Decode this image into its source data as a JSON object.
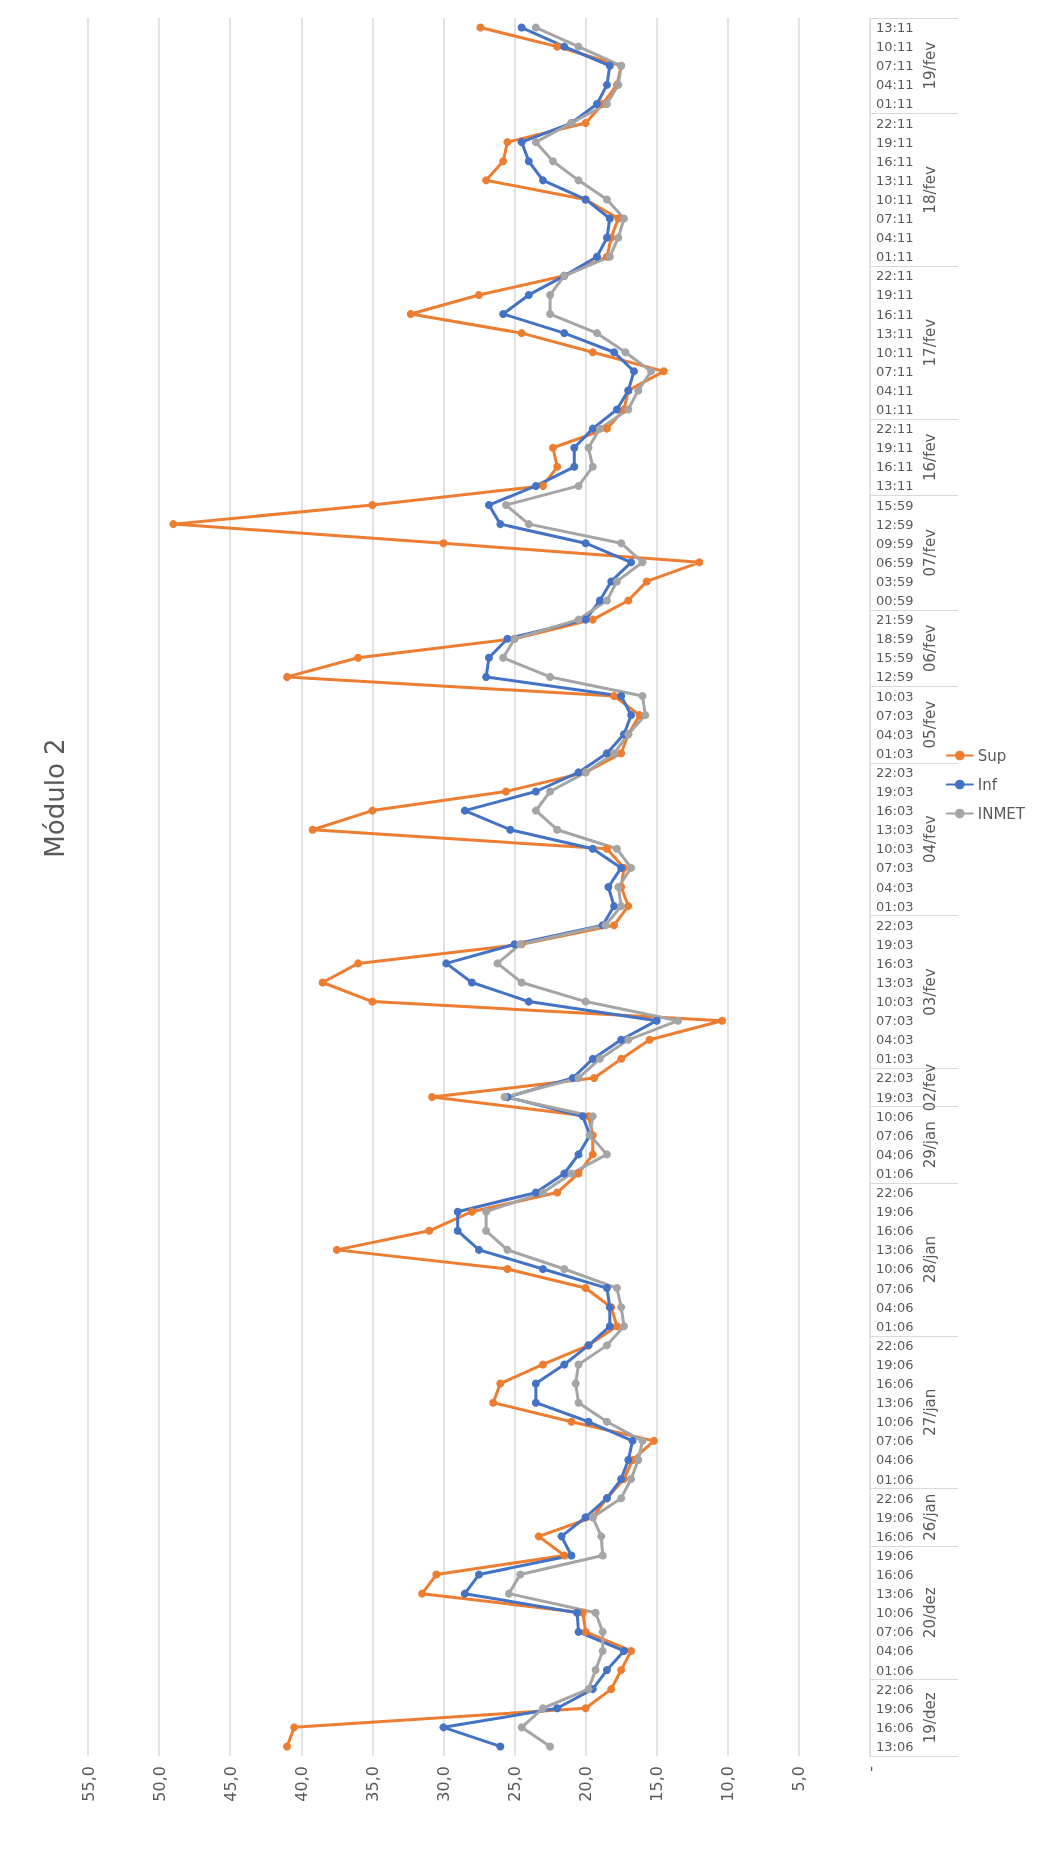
{
  "chart_data": {
    "type": "line",
    "title": "Módulo 2",
    "orientation": "horizontal",
    "categories": [
      "13:11",
      "10:11",
      "07:11",
      "04:11",
      "01:11",
      "22:11",
      "19:11",
      "16:11",
      "13:11",
      "10:11",
      "07:11",
      "04:11",
      "01:11",
      "22:11",
      "19:11",
      "16:11",
      "13:11",
      "10:11",
      "07:11",
      "04:11",
      "01:11",
      "22:11",
      "19:11",
      "16:11",
      "13:11",
      "15:59",
      "12:59",
      "09:59",
      "06:59",
      "03:59",
      "00:59",
      "21:59",
      "18:59",
      "15:59",
      "12:59",
      "10:03",
      "07:03",
      "04:03",
      "01:03",
      "22:03",
      "19:03",
      "16:03",
      "13:03",
      "10:03",
      "07:03",
      "04:03",
      "01:03",
      "22:03",
      "19:03",
      "16:03",
      "13:03",
      "10:03",
      "07:03",
      "04:03",
      "01:03",
      "22:03",
      "19:03",
      "10:06",
      "07:06",
      "04:06",
      "01:06",
      "22:06",
      "19:06",
      "16:06",
      "13:06",
      "10:06",
      "07:06",
      "04:06",
      "01:06",
      "22:06",
      "19:06",
      "16:06",
      "13:06",
      "10:06",
      "07:06",
      "04:06",
      "01:06",
      "22:06",
      "19:06",
      "16:06",
      "19:06",
      "16:06",
      "13:06",
      "10:06",
      "07:06",
      "04:06",
      "01:06",
      "22:06",
      "19:06",
      "16:06",
      "13:06"
    ],
    "annotations": [
      "19/fev",
      "18/fev",
      "17/fev",
      "16/fev",
      "07/fev",
      "06/fev",
      "05/fev",
      "04/fev",
      "03/fev",
      "02/fev",
      "29/jan",
      "28/jan",
      "27/jan",
      "26/jan",
      "20/dez",
      "19/dez"
    ],
    "series": [
      {
        "name": "Sup",
        "color": "#ed7d31",
        "values": [
          27.4,
          22,
          17.5,
          17.8,
          18.8,
          20,
          25.5,
          25.8,
          27,
          20,
          17.7,
          18.2,
          18.5,
          21.5,
          27.5,
          32.3,
          24.5,
          19.5,
          14.5,
          17,
          17.3,
          18.5,
          22.3,
          22,
          23,
          35,
          49,
          30,
          12,
          15.7,
          17,
          19.5,
          25,
          36,
          41,
          18,
          16.2,
          17,
          17.5,
          20,
          25.6,
          35,
          39.2,
          18.5,
          17.3,
          17.5,
          17,
          18,
          24.5,
          36,
          38.5,
          35,
          10.4,
          15.5,
          17.5,
          19.4,
          30.8,
          19.8,
          19.5,
          19.5,
          20.5,
          22,
          28,
          31,
          37.5,
          25.5,
          20,
          18.2,
          17.8,
          19.8,
          23,
          26,
          26.5,
          21,
          15.2,
          16.7,
          17.3,
          18.5,
          19.5,
          23.3,
          21.5,
          30.5,
          31.5,
          20.2,
          20,
          16.8,
          17.5,
          18.2,
          20,
          40.5,
          41
        ]
      },
      {
        "name": "Inf",
        "color": "#4472c4",
        "values": [
          24.5,
          21.5,
          18.3,
          18.5,
          19.2,
          21,
          24.5,
          24,
          23,
          20,
          18.3,
          18.5,
          19.2,
          21.5,
          24,
          25.8,
          21.5,
          18,
          16.6,
          17,
          17.8,
          19.5,
          20.8,
          20.8,
          23.5,
          26.8,
          26,
          20,
          16.8,
          18.2,
          19,
          20,
          25.5,
          26.8,
          27,
          17.5,
          16.8,
          17.3,
          18.5,
          20.5,
          23.5,
          28.5,
          25.3,
          19.5,
          17.5,
          18.4,
          18,
          18.8,
          25,
          29.8,
          28,
          24,
          15,
          17.5,
          19.5,
          20.9,
          25.5,
          20.2,
          19.7,
          20.5,
          21.5,
          23.5,
          29,
          29,
          27.5,
          23,
          18.5,
          18.3,
          18.3,
          19.8,
          21.5,
          23.5,
          23.5,
          19.8,
          16.7,
          17,
          17.5,
          18.5,
          20,
          21.7,
          21,
          27.5,
          28.5,
          20.6,
          20.5,
          17.3,
          18.5,
          19.5,
          22,
          30,
          26
        ]
      },
      {
        "name": "INMET",
        "color": "#a5a5a5",
        "values": [
          23.5,
          20.5,
          17.5,
          17.7,
          18.5,
          21,
          23.5,
          22.3,
          20.5,
          18.5,
          17.3,
          17.7,
          18.3,
          21.5,
          22.5,
          22.5,
          19.2,
          17.2,
          15.4,
          16.3,
          17,
          19,
          19.8,
          19.5,
          20.5,
          25.6,
          24,
          17.5,
          16,
          17.8,
          18.5,
          20.5,
          25,
          25.8,
          22.5,
          16,
          15.8,
          17,
          18,
          20,
          22.5,
          23.5,
          22,
          17.8,
          16.8,
          17.7,
          17.5,
          18.6,
          24.6,
          26.2,
          24.5,
          20,
          13.5,
          17,
          19,
          20.5,
          25.7,
          19.5,
          19.7,
          18.5,
          21,
          23,
          27,
          27,
          25.5,
          21.5,
          17.8,
          17.5,
          17.3,
          18.5,
          20.5,
          20.7,
          20.5,
          18.5,
          16,
          16.3,
          16.8,
          17.5,
          19.5,
          18.9,
          18.8,
          24.6,
          25.4,
          19.3,
          18.8,
          18.8,
          19.3,
          19.8,
          23,
          24.5,
          22.5
        ]
      }
    ],
    "xlim": [
      55,
      0
    ],
    "xticks": [
      {
        "value": 55,
        "label": "55,0"
      },
      {
        "value": 50,
        "label": "50,0"
      },
      {
        "value": 45,
        "label": "45,0"
      },
      {
        "value": 40,
        "label": "40,0"
      },
      {
        "value": 35,
        "label": "35,0"
      },
      {
        "value": 30,
        "label": "30,0"
      },
      {
        "value": 25,
        "label": "25,0"
      },
      {
        "value": 20,
        "label": "20,0"
      },
      {
        "value": 15,
        "label": "15,0"
      },
      {
        "value": 10,
        "label": "10,0"
      },
      {
        "value": 5,
        "label": "5,0"
      },
      {
        "value": 0,
        "label": "-"
      }
    ],
    "grid": "x",
    "legend": "right",
    "marker": "circle",
    "line_style": "solid"
  }
}
